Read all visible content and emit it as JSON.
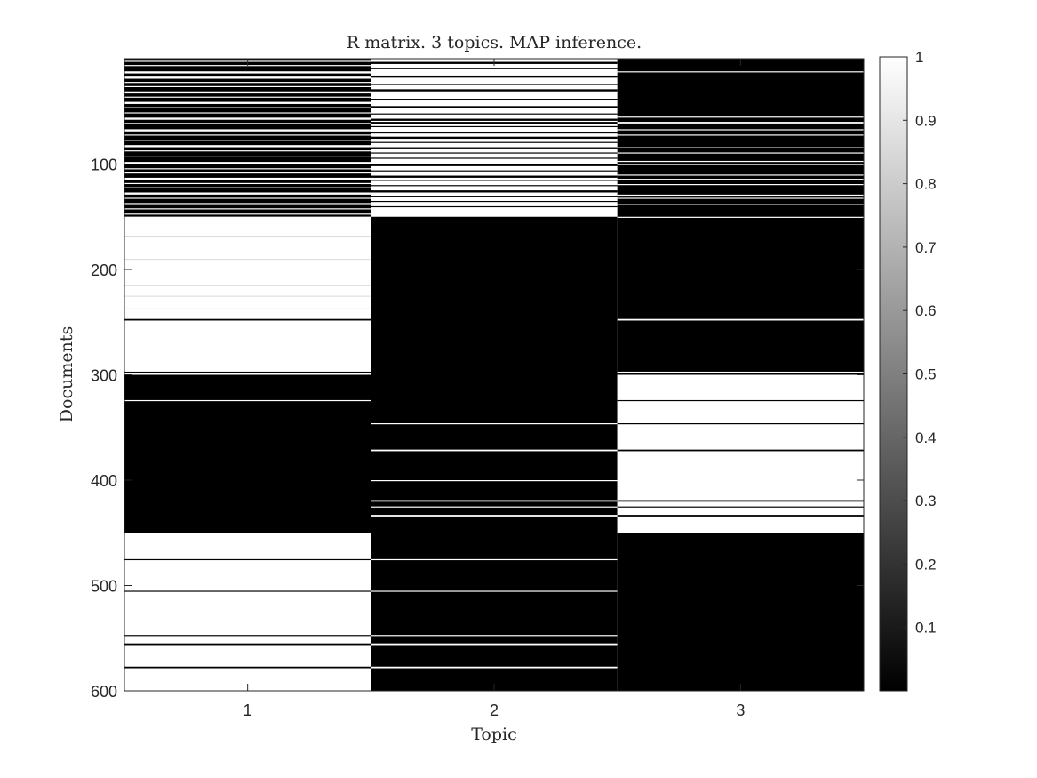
{
  "chart_data": {
    "type": "heatmap",
    "title": "R matrix. 3 topics. MAP inference.",
    "xlabel": "Topic",
    "ylabel": "Documents",
    "x_categories": [
      "1",
      "2",
      "3"
    ],
    "y_ticks": [
      "100",
      "200",
      "300",
      "400",
      "500",
      "600"
    ],
    "y_tick_values": [
      100,
      200,
      300,
      400,
      500,
      600
    ],
    "ylim": [
      0,
      600
    ],
    "y_reversed": true,
    "colormap": "gray",
    "colorbar": {
      "range": [
        0,
        1
      ],
      "ticks": [
        "0.1",
        "0.2",
        "0.3",
        "0.4",
        "0.5",
        "0.6",
        "0.7",
        "0.8",
        "0.9",
        "1"
      ],
      "tick_values": [
        0.1,
        0.2,
        0.3,
        0.4,
        0.5,
        0.6,
        0.7,
        0.8,
        0.9,
        1
      ]
    },
    "topics": [
      {
        "name": "1",
        "segments": [
          {
            "from": 0,
            "to": 150,
            "value": 0
          },
          {
            "from": 150,
            "to": 300,
            "value": 1
          },
          {
            "from": 300,
            "to": 450,
            "value": 0
          },
          {
            "from": 450,
            "to": 600,
            "value": 1
          }
        ],
        "stripes": [
          [
            2,
            1
          ],
          [
            6,
            1
          ],
          [
            12,
            2
          ],
          [
            17,
            2
          ],
          [
            22,
            1
          ],
          [
            26,
            1
          ],
          [
            31,
            2
          ],
          [
            36,
            1
          ],
          [
            41,
            2
          ],
          [
            46,
            1
          ],
          [
            51,
            1
          ],
          [
            56,
            2
          ],
          [
            61,
            1
          ],
          [
            67,
            2
          ],
          [
            72,
            1
          ],
          [
            77,
            1
          ],
          [
            82,
            2
          ],
          [
            87,
            1
          ],
          [
            92,
            1
          ],
          [
            98,
            2
          ],
          [
            104,
            1
          ],
          [
            108,
            1
          ],
          [
            113,
            2
          ],
          [
            118,
            1
          ],
          [
            122,
            1
          ],
          [
            127,
            2
          ],
          [
            132,
            1
          ],
          [
            137,
            1
          ],
          [
            142,
            1
          ],
          [
            147,
            1
          ],
          [
            168,
            0.4,
            0.85
          ],
          [
            190,
            0.4,
            0.85
          ],
          [
            215,
            0.4,
            0.85
          ],
          [
            225,
            0.4,
            0.85
          ],
          [
            237,
            0.4,
            0.85
          ],
          [
            247,
            1.5,
            0
          ],
          [
            297,
            1,
            0
          ],
          [
            324,
            1,
            1
          ],
          [
            475,
            1,
            0
          ],
          [
            505,
            1,
            0
          ],
          [
            547,
            1,
            0
          ],
          [
            555,
            1.5,
            0
          ],
          [
            577,
            1.5,
            0
          ]
        ]
      },
      {
        "name": "2",
        "segments": [
          {
            "from": 0,
            "to": 150,
            "value": 1
          },
          {
            "from": 150,
            "to": 450,
            "value": 0
          },
          {
            "from": 450,
            "to": 600,
            "value": 0
          }
        ],
        "stripes": [
          [
            3,
            2,
            0
          ],
          [
            9,
            1,
            0
          ],
          [
            16,
            2,
            0
          ],
          [
            24,
            1,
            0
          ],
          [
            29,
            2,
            0
          ],
          [
            38,
            1,
            0
          ],
          [
            45,
            2,
            0
          ],
          [
            52,
            1,
            0
          ],
          [
            57,
            2,
            0
          ],
          [
            60,
            2,
            0
          ],
          [
            64,
            1,
            0
          ],
          [
            70,
            1,
            0
          ],
          [
            74,
            2,
            0
          ],
          [
            79,
            1,
            0
          ],
          [
            84,
            2,
            0
          ],
          [
            89,
            1,
            0
          ],
          [
            94,
            1,
            0
          ],
          [
            100,
            2,
            0
          ],
          [
            106,
            1,
            0
          ],
          [
            111,
            2,
            0
          ],
          [
            115,
            1,
            0
          ],
          [
            120,
            1,
            0
          ],
          [
            125,
            2,
            0
          ],
          [
            130,
            1,
            0
          ],
          [
            135,
            1,
            0
          ],
          [
            140,
            1,
            0
          ],
          [
            346,
            1,
            1
          ],
          [
            371,
            1.5,
            1
          ],
          [
            400,
            1,
            1
          ],
          [
            419,
            1.5,
            1
          ],
          [
            425,
            1,
            1
          ],
          [
            433,
            1.5,
            1
          ],
          [
            475,
            1,
            1
          ],
          [
            505,
            1,
            1
          ],
          [
            547,
            1,
            1
          ],
          [
            555,
            1.5,
            1
          ],
          [
            577,
            1.5,
            1
          ]
        ]
      },
      {
        "name": "3",
        "segments": [
          {
            "from": 0,
            "to": 300,
            "value": 0
          },
          {
            "from": 300,
            "to": 450,
            "value": 1
          },
          {
            "from": 450,
            "to": 600,
            "value": 0
          }
        ],
        "stripes": [
          [
            12,
            1,
            1
          ],
          [
            55,
            1,
            1
          ],
          [
            60,
            1.5,
            1
          ],
          [
            67,
            1,
            1
          ],
          [
            72,
            1,
            1
          ],
          [
            84,
            1,
            1
          ],
          [
            89,
            1,
            1
          ],
          [
            97,
            1,
            1
          ],
          [
            100,
            1,
            1
          ],
          [
            110,
            1,
            1
          ],
          [
            114,
            1,
            1
          ],
          [
            119,
            1,
            1
          ],
          [
            129,
            1,
            1
          ],
          [
            132,
            1,
            1
          ],
          [
            138,
            1,
            1
          ],
          [
            150,
            1,
            1
          ],
          [
            247,
            1.5,
            1
          ],
          [
            297,
            1,
            1
          ],
          [
            324,
            1,
            0
          ],
          [
            346,
            1,
            0
          ],
          [
            371,
            1.5,
            0
          ],
          [
            419,
            1.5,
            0
          ],
          [
            425,
            1,
            0
          ],
          [
            433,
            1.5,
            0
          ]
        ]
      }
    ]
  }
}
